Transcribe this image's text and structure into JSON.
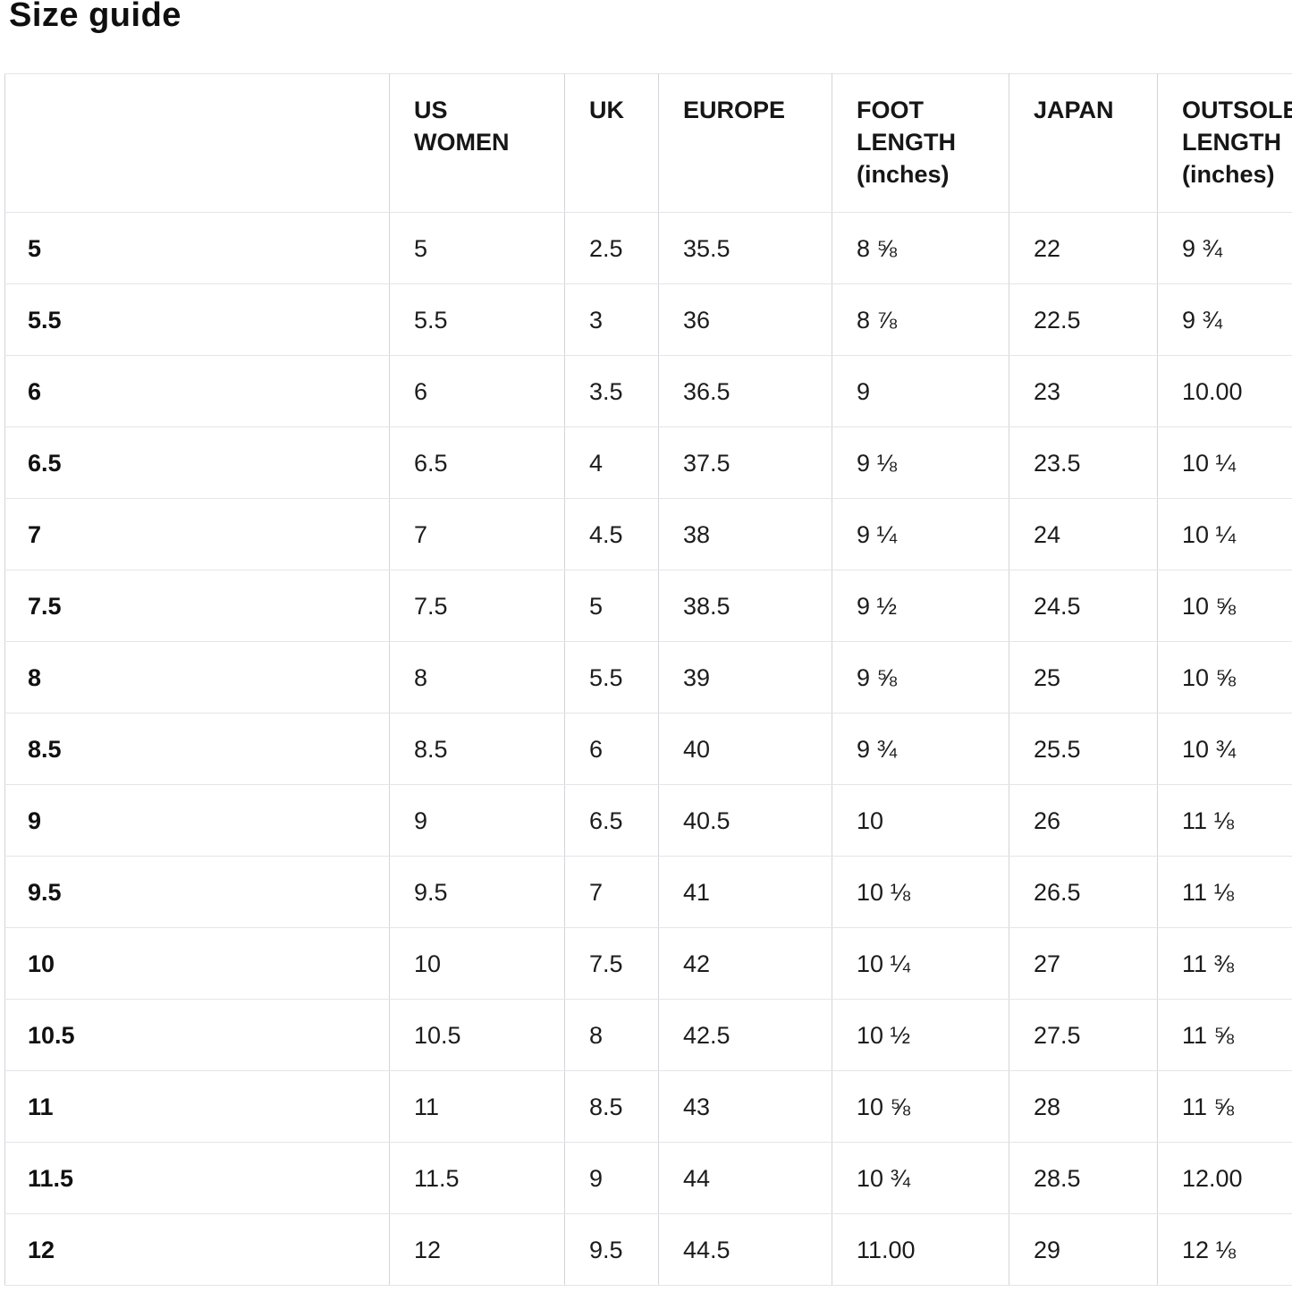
{
  "page": {
    "title": "Size guide"
  },
  "table": {
    "columns": [
      {
        "key": "size",
        "label": ""
      },
      {
        "key": "us-women",
        "label": "US WOMEN"
      },
      {
        "key": "uk",
        "label": "UK"
      },
      {
        "key": "europe",
        "label": "EUROPE"
      },
      {
        "key": "foot-length",
        "label": "FOOT LENGTH (inches)"
      },
      {
        "key": "japan",
        "label": "JAPAN"
      },
      {
        "key": "outsole-length",
        "label": "OUTSOLE LENGTH (inches)"
      }
    ],
    "rows": [
      [
        "5",
        "5",
        "2.5",
        "35.5",
        "8 ⅝",
        "22",
        "9 ¾"
      ],
      [
        "5.5",
        "5.5",
        "3",
        "36",
        "8 ⅞",
        "22.5",
        "9 ¾"
      ],
      [
        "6",
        "6",
        "3.5",
        "36.5",
        "9",
        "23",
        "10.00"
      ],
      [
        "6.5",
        "6.5",
        "4",
        "37.5",
        "9 ⅛",
        "23.5",
        "10 ¼"
      ],
      [
        "7",
        "7",
        "4.5",
        "38",
        "9 ¼",
        "24",
        "10 ¼"
      ],
      [
        "7.5",
        "7.5",
        "5",
        "38.5",
        "9 ½",
        "24.5",
        "10 ⅝"
      ],
      [
        "8",
        "8",
        "5.5",
        "39",
        "9 ⅝",
        "25",
        "10 ⅝"
      ],
      [
        "8.5",
        "8.5",
        "6",
        "40",
        "9 ¾",
        "25.5",
        "10 ¾"
      ],
      [
        "9",
        "9",
        "6.5",
        "40.5",
        "10",
        "26",
        "11 ⅛"
      ],
      [
        "9.5",
        "9.5",
        "7",
        "41",
        "10 ⅛",
        "26.5",
        "11 ⅛"
      ],
      [
        "10",
        "10",
        "7.5",
        "42",
        "10 ¼",
        "27",
        "11 ⅜"
      ],
      [
        "10.5",
        "10.5",
        "8",
        "42.5",
        "10 ½",
        "27.5",
        "11 ⅝"
      ],
      [
        "11",
        "11",
        "8.5",
        "43",
        "10 ⅝",
        "28",
        "11 ⅝"
      ],
      [
        "11.5",
        "11.5",
        "9",
        "44",
        "10 ¾",
        "28.5",
        "12.00"
      ],
      [
        "12",
        "12",
        "9.5",
        "44.5",
        "11.00",
        "29",
        "12 ⅛"
      ]
    ]
  }
}
